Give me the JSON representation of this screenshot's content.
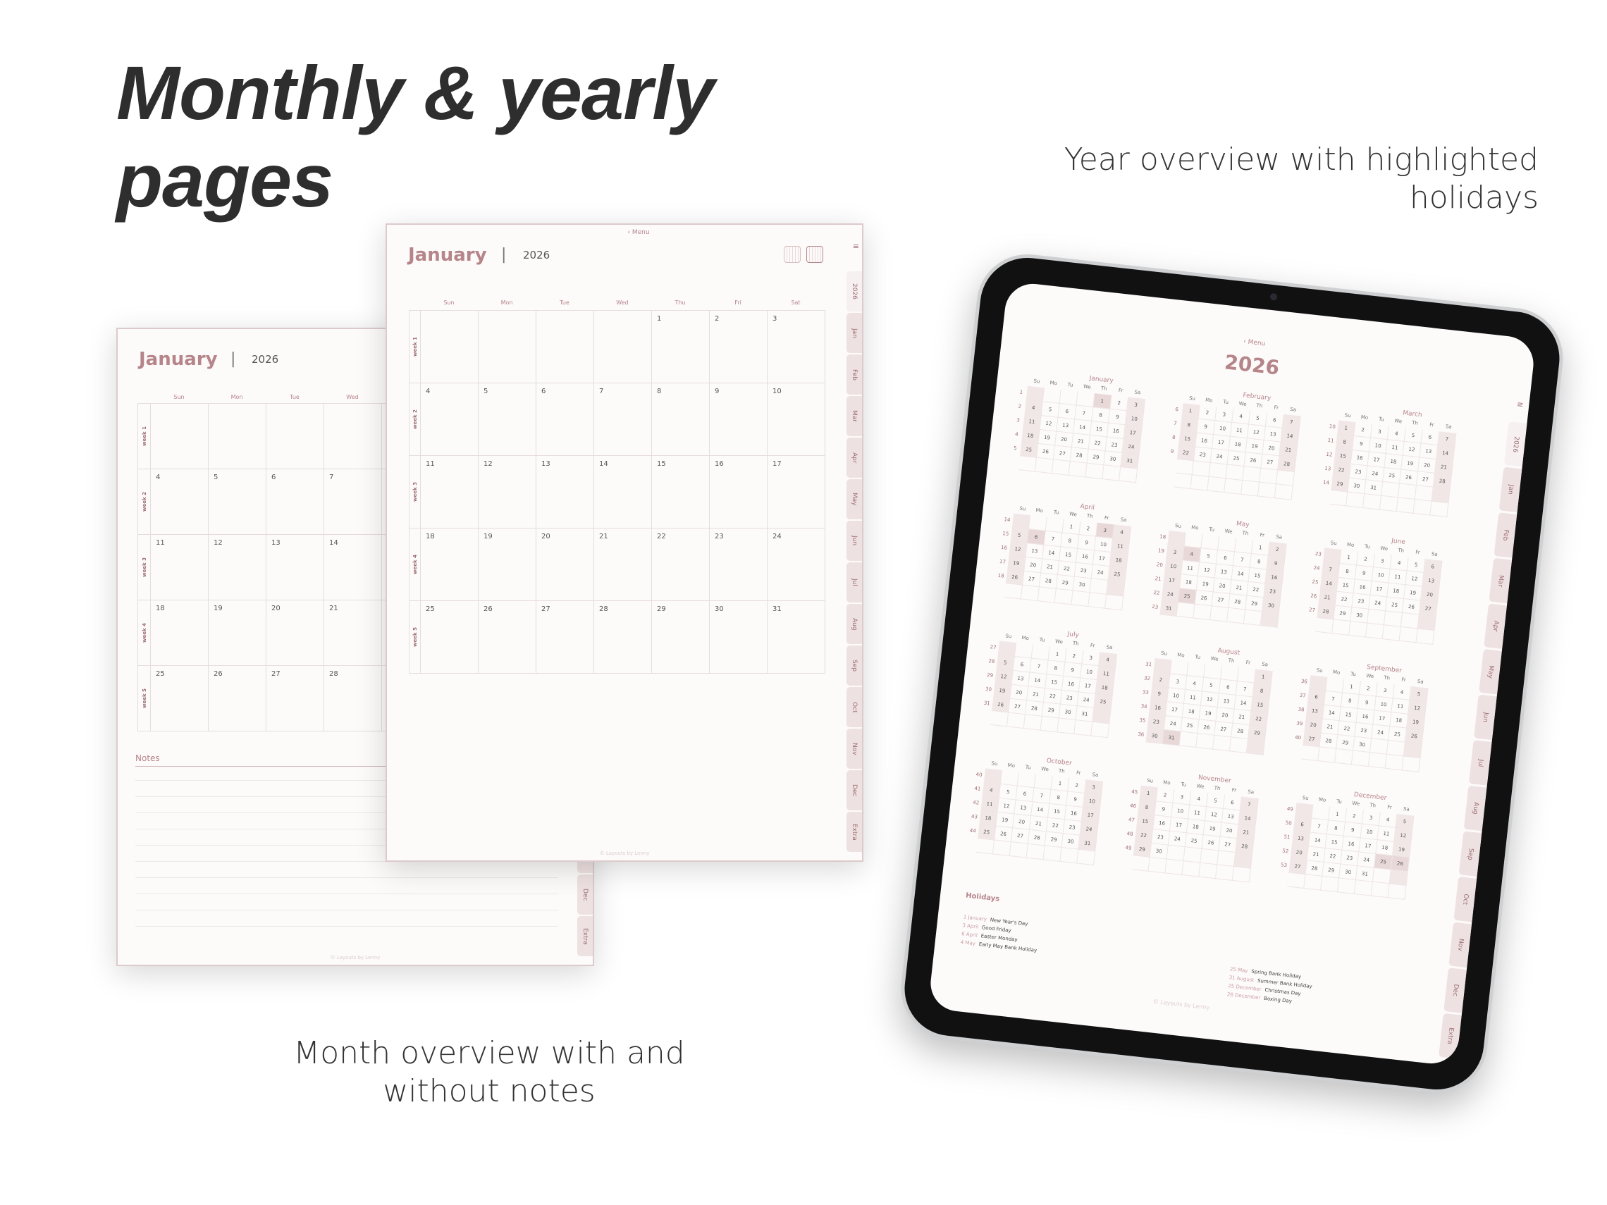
{
  "headline": {
    "line1": "Monthly & yearly",
    "line2": "pages"
  },
  "captions": {
    "year": "Year overview with highlighted holidays",
    "month": "Month overview with and without notes"
  },
  "colors": {
    "accent": "#b5858a",
    "tab": "#eee1e2",
    "highlight": "#e8d8d8",
    "page": "#fdfafa"
  },
  "month_page": {
    "menu": "‹ Menu",
    "title": "January",
    "separator": "|",
    "year": "2026",
    "weekdays": [
      "Sun",
      "Mon",
      "Tue",
      "Wed",
      "Thu",
      "Fri",
      "Sat"
    ],
    "week_labels": [
      "week 1",
      "week 2",
      "week 3",
      "week 4",
      "week 5"
    ],
    "first_weekday": 4,
    "days": 31,
    "notes_title": "Notes",
    "footer": "© Layouts by Lenny",
    "icons": [
      "calendar-grid-icon",
      "calendar-list-icon",
      "menu-icon"
    ]
  },
  "tabs": [
    "2026",
    "Jan",
    "Feb",
    "Mar",
    "Apr",
    "May",
    "Jun",
    "Jul",
    "Aug",
    "Sep",
    "Oct",
    "Nov",
    "Dec",
    "Extra"
  ],
  "year_page": {
    "menu": "‹ Menu",
    "year": "2026",
    "footer": "© Layouts by Lenny",
    "weekdays": [
      "Su",
      "Mo",
      "Tu",
      "We",
      "Th",
      "Fr",
      "Sa"
    ],
    "months": [
      {
        "name": "January",
        "first_weekday": 4,
        "days": 31,
        "first_week": 1,
        "holidays": [
          1
        ]
      },
      {
        "name": "February",
        "first_weekday": 0,
        "days": 28,
        "first_week": 6,
        "holidays": []
      },
      {
        "name": "March",
        "first_weekday": 0,
        "days": 31,
        "first_week": 10,
        "holidays": []
      },
      {
        "name": "April",
        "first_weekday": 3,
        "days": 30,
        "first_week": 14,
        "holidays": [
          3,
          6
        ]
      },
      {
        "name": "May",
        "first_weekday": 5,
        "days": 31,
        "first_week": 18,
        "holidays": [
          4,
          25
        ]
      },
      {
        "name": "June",
        "first_weekday": 1,
        "days": 30,
        "first_week": 23,
        "holidays": []
      },
      {
        "name": "July",
        "first_weekday": 3,
        "days": 31,
        "first_week": 27,
        "holidays": []
      },
      {
        "name": "August",
        "first_weekday": 6,
        "days": 31,
        "first_week": 31,
        "holidays": [
          31
        ]
      },
      {
        "name": "September",
        "first_weekday": 2,
        "days": 30,
        "first_week": 36,
        "holidays": []
      },
      {
        "name": "October",
        "first_weekday": 4,
        "days": 31,
        "first_week": 40,
        "holidays": []
      },
      {
        "name": "November",
        "first_weekday": 0,
        "days": 30,
        "first_week": 45,
        "holidays": []
      },
      {
        "name": "December",
        "first_weekday": 2,
        "days": 31,
        "first_week": 49,
        "holidays": [
          25,
          26
        ]
      }
    ],
    "holidays_title": "Holidays",
    "holidays_left": [
      {
        "date": "1 January",
        "name": "New Year's Day"
      },
      {
        "date": "3 April",
        "name": "Good Friday"
      },
      {
        "date": "6 April",
        "name": "Easter Monday"
      },
      {
        "date": "4 May",
        "name": "Early May Bank Holiday"
      }
    ],
    "holidays_right": [
      {
        "date": "25 May",
        "name": "Spring Bank Holiday"
      },
      {
        "date": "31 August",
        "name": "Summer Bank Holiday"
      },
      {
        "date": "25 December",
        "name": "Christmas Day"
      },
      {
        "date": "26 December",
        "name": "Boxing Day"
      }
    ]
  }
}
